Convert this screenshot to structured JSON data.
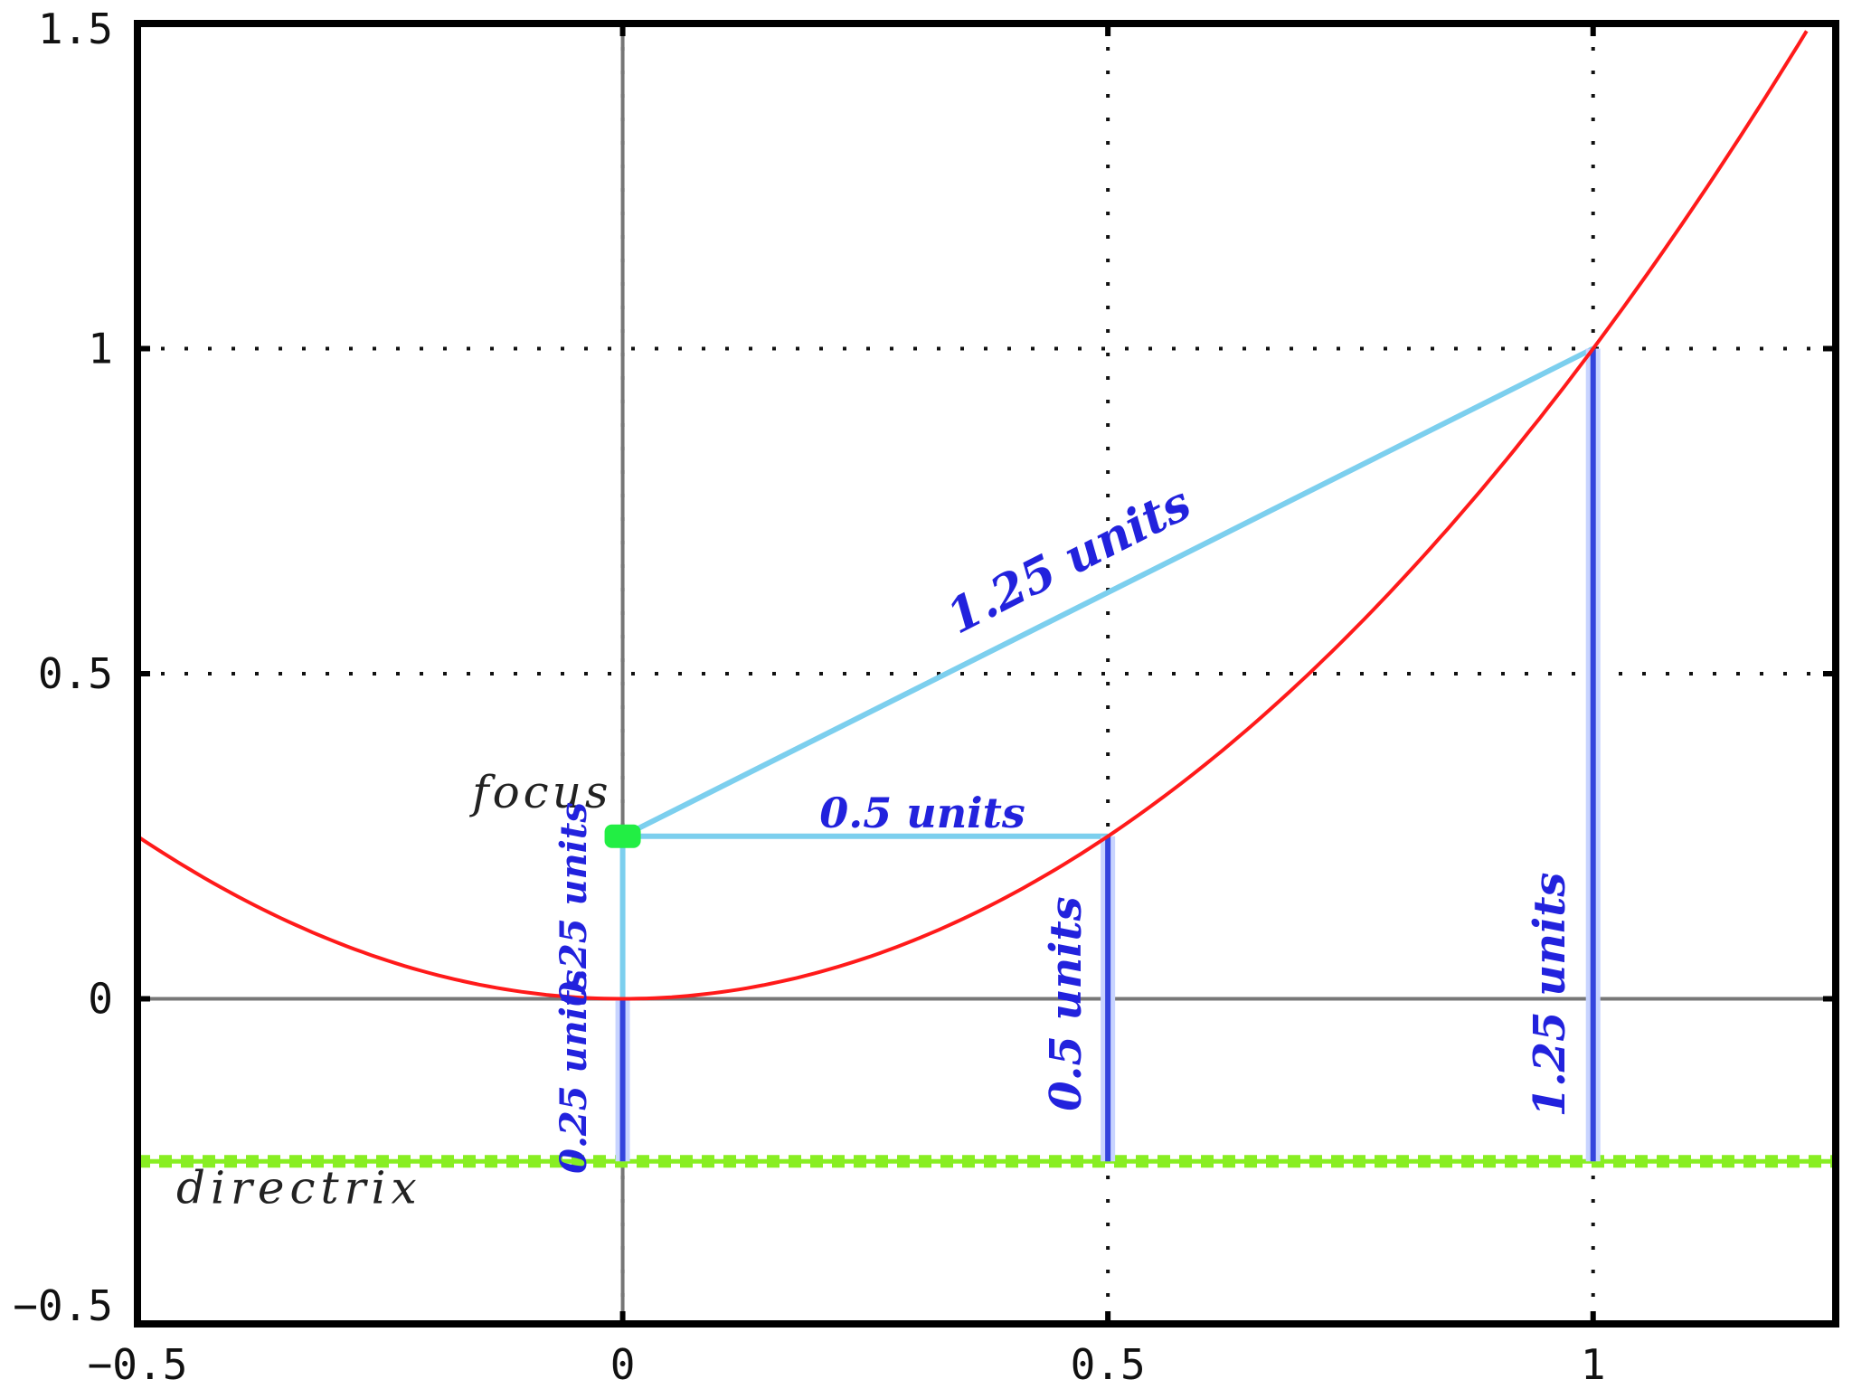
{
  "chart_data": {
    "type": "line",
    "title": "",
    "xlabel": "",
    "ylabel": "",
    "xlim": [
      -0.5,
      1.25
    ],
    "ylim": [
      -0.5,
      1.5
    ],
    "grid": true,
    "xticks": [
      {
        "value": -0.5,
        "label": "−0.5"
      },
      {
        "value": 0,
        "label": "0"
      },
      {
        "value": 0.5,
        "label": "0.5"
      },
      {
        "value": 1,
        "label": "1"
      }
    ],
    "yticks": [
      {
        "value": -0.5,
        "label": "−0.5"
      },
      {
        "value": 0,
        "label": "0"
      },
      {
        "value": 0.5,
        "label": "0.5"
      },
      {
        "value": 1,
        "label": "1"
      },
      {
        "value": 1.5,
        "label": "1.5"
      }
    ],
    "parabola": {
      "equation": "y = x^2",
      "x_range": [
        -0.5,
        1.22
      ],
      "color": "#ff1a1a"
    },
    "focus": {
      "x": 0,
      "y": 0.25,
      "label": "focus",
      "color": "#22ee44"
    },
    "directrix": {
      "y": -0.25,
      "label": "directrix",
      "color": "#88ee22"
    },
    "segments": [
      {
        "from": [
          0,
          0.25
        ],
        "to": [
          1,
          1
        ],
        "label": "1.25 units",
        "color": "#7ccfee"
      },
      {
        "from": [
          0,
          0.25
        ],
        "to": [
          0.5,
          0.25
        ],
        "label": "0.5 units",
        "color": "#7ccfee"
      },
      {
        "from": [
          0,
          0.25
        ],
        "to": [
          0,
          0
        ],
        "label": "0.25 units",
        "color": "#7ccfee"
      },
      {
        "from": [
          0,
          0
        ],
        "to": [
          0,
          -0.25
        ],
        "label": "0.25 units",
        "color": "#3344dd"
      },
      {
        "from": [
          0.5,
          0.25
        ],
        "to": [
          0.5,
          -0.25
        ],
        "label": "0.5 units",
        "color": "#3344dd"
      },
      {
        "from": [
          1,
          1
        ],
        "to": [
          1,
          -0.25
        ],
        "label": "1.25 units",
        "color": "#3344dd"
      }
    ]
  }
}
